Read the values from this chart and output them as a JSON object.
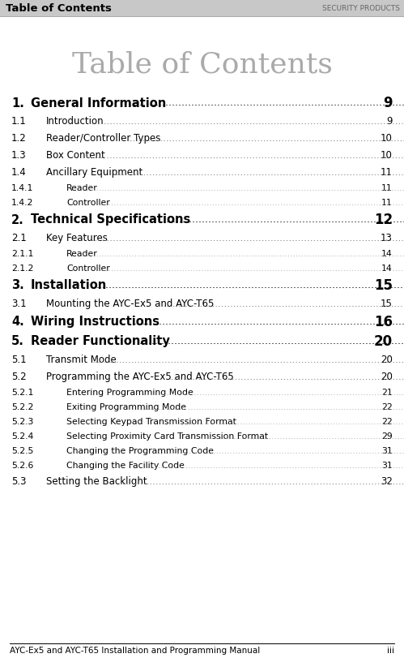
{
  "header_left": "Table of Contents",
  "header_right": "SECURITY PRODUCTS",
  "title": "Table of Contents",
  "footer_left": "AYC-Ex5 and AYC-T65 Installation and Programming Manual",
  "footer_right": "iii",
  "entries": [
    {
      "num": "1.",
      "text": "General Information",
      "page": "9",
      "level": 0,
      "bold": true
    },
    {
      "num": "1.1",
      "text": "Introduction",
      "page": "9",
      "level": 1,
      "bold": false
    },
    {
      "num": "1.2",
      "text": "Reader/Controller Types",
      "page": "10",
      "level": 1,
      "bold": false
    },
    {
      "num": "1.3",
      "text": "Box Content",
      "page": "10",
      "level": 1,
      "bold": false
    },
    {
      "num": "1.4",
      "text": "Ancillary Equipment",
      "page": "11",
      "level": 1,
      "bold": false
    },
    {
      "num": "1.4.1",
      "text": "Reader",
      "page": "11",
      "level": 2,
      "bold": false
    },
    {
      "num": "1.4.2",
      "text": "Controller",
      "page": "11",
      "level": 2,
      "bold": false
    },
    {
      "num": "2.",
      "text": "Technical Specifications",
      "page": "12",
      "level": 0,
      "bold": true
    },
    {
      "num": "2.1",
      "text": "Key Features",
      "page": "13",
      "level": 1,
      "bold": false
    },
    {
      "num": "2.1.1",
      "text": "Reader",
      "page": "14",
      "level": 2,
      "bold": false
    },
    {
      "num": "2.1.2",
      "text": "Controller",
      "page": "14",
      "level": 2,
      "bold": false
    },
    {
      "num": "3.",
      "text": "Installation",
      "page": "15",
      "level": 0,
      "bold": true
    },
    {
      "num": "3.1",
      "text": "Mounting the AYC-Ex5 and AYC-T65",
      "page": "15",
      "level": 1,
      "bold": false
    },
    {
      "num": "4.",
      "text": "Wiring Instructions",
      "page": "16",
      "level": 0,
      "bold": true
    },
    {
      "num": "5.",
      "text": "Reader Functionality",
      "page": "20",
      "level": 0,
      "bold": true
    },
    {
      "num": "5.1",
      "text": "Transmit Mode",
      "page": "20",
      "level": 1,
      "bold": false
    },
    {
      "num": "5.2",
      "text": "Programming the AYC-Ex5 and AYC-T65",
      "page": "20",
      "level": 1,
      "bold": false
    },
    {
      "num": "5.2.1",
      "text": "Entering Programming Mode",
      "page": "21",
      "level": 2,
      "bold": false
    },
    {
      "num": "5.2.2",
      "text": "Exiting Programming Mode",
      "page": "22",
      "level": 2,
      "bold": false
    },
    {
      "num": "5.2.3",
      "text": "Selecting Keypad Transmission Format",
      "page": "22",
      "level": 2,
      "bold": false
    },
    {
      "num": "5.2.4",
      "text": "Selecting Proximity Card Transmission Format",
      "page": "29",
      "level": 2,
      "bold": false
    },
    {
      "num": "5.2.5",
      "text": "Changing the Programming Code",
      "page": "31",
      "level": 2,
      "bold": false
    },
    {
      "num": "5.2.6",
      "text": "Changing the Facility Code",
      "page": "31",
      "level": 2,
      "bold": false
    },
    {
      "num": "5.3",
      "text": "Setting the Backlight",
      "page": "32",
      "level": 1,
      "bold": false
    }
  ],
  "bg_color": "#ffffff",
  "header_bg": "#c8c8c8",
  "title_color": "#aaaaaa",
  "title_fontsize": 26,
  "header_fontsize": 9.5,
  "footer_fontsize": 7.5
}
